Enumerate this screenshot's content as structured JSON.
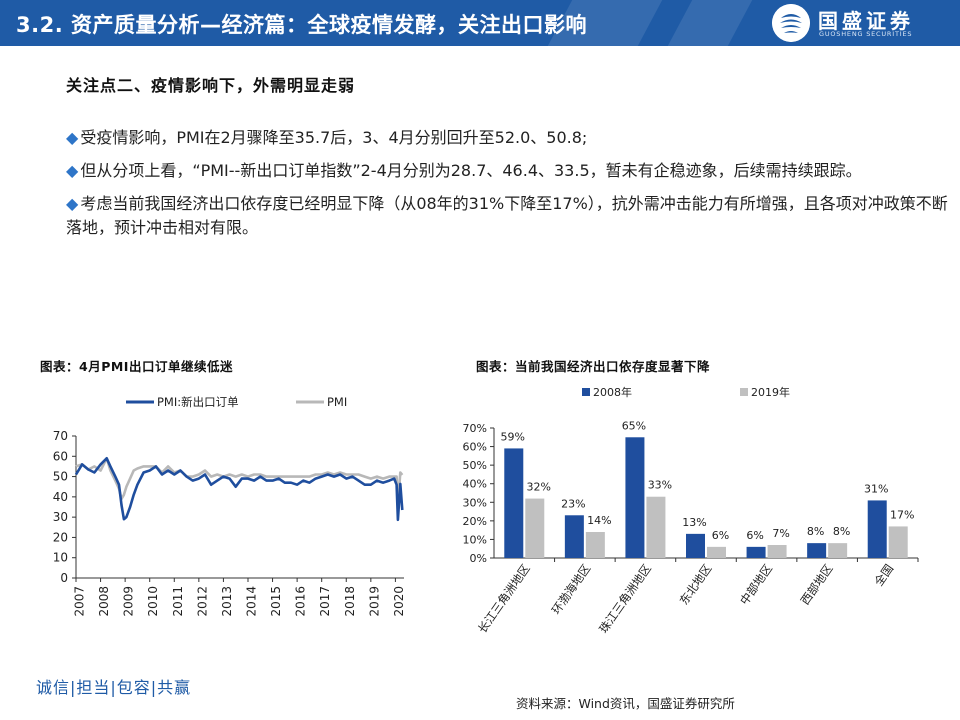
{
  "header": {
    "section_no": "3.2.",
    "title": "资产质量分析—经济篇：全球疫情发酵，关注出口影响",
    "brand_name": "国盛证券",
    "brand_sub": "GUOSHENG SECURITIES",
    "accent_color": "#1f5ba6"
  },
  "subheading": "关注点二、疫情影响下，外需明显走弱",
  "bullets": [
    "受疫情影响，PMI在2月骤降至35.7后，3、4月分别回升至52.0、50.8;",
    "但从分项上看，“PMI--新出口订单指数”2-4月分别为28.7、46.4、33.5，暂未有企稳迹象，后续需持续跟踪。",
    "考虑当前我国经济出口依存度已经明显下降（从08年的31%下降至17%），抗外需冲击能力有所增强，且各项对冲政策不断落地，预计冲击相对有限。"
  ],
  "bullet_icon": "diamond-bullet-icon",
  "footer": {
    "slogan": "诚信|担当|包容|共赢",
    "source": "资料来源：Wind资讯，国盛证券研究所"
  },
  "chart_data": [
    {
      "type": "line",
      "title": "图表：4月PMI出口订单继续低迷",
      "xlabel": "",
      "ylabel": "",
      "ylim": [
        0,
        70
      ],
      "yticks": [
        0,
        10,
        20,
        30,
        40,
        50,
        60,
        70
      ],
      "xticks": [
        "2007",
        "2008",
        "2009",
        "2010",
        "2011",
        "2012",
        "2013",
        "2014",
        "2015",
        "2016",
        "2017",
        "2018",
        "2019",
        "2020"
      ],
      "legend_position": "top",
      "series": [
        {
          "name": "PMI:新出口订单",
          "color": "#1f4e9e",
          "values": [
            [
              2007.0,
              51.0
            ],
            [
              2007.25,
              56.0
            ],
            [
              2007.5,
              53.5
            ],
            [
              2007.75,
              52.0
            ],
            [
              2008.0,
              56.0
            ],
            [
              2008.25,
              59.0
            ],
            [
              2008.4,
              55.0
            ],
            [
              2008.6,
              50.0
            ],
            [
              2008.75,
              46.0
            ],
            [
              2008.85,
              36.0
            ],
            [
              2008.95,
              29.0
            ],
            [
              2009.05,
              30.0
            ],
            [
              2009.2,
              35.0
            ],
            [
              2009.35,
              41.0
            ],
            [
              2009.5,
              46.0
            ],
            [
              2009.75,
              52.0
            ],
            [
              2010.0,
              53.0
            ],
            [
              2010.25,
              55.0
            ],
            [
              2010.5,
              51.0
            ],
            [
              2010.75,
              53.0
            ],
            [
              2011.0,
              51.0
            ],
            [
              2011.25,
              53.0
            ],
            [
              2011.5,
              50.0
            ],
            [
              2011.75,
              48.0
            ],
            [
              2012.0,
              49.0
            ],
            [
              2012.25,
              51.0
            ],
            [
              2012.5,
              46.0
            ],
            [
              2012.75,
              48.0
            ],
            [
              2013.0,
              50.0
            ],
            [
              2013.25,
              49.0
            ],
            [
              2013.5,
              45.0
            ],
            [
              2013.75,
              49.0
            ],
            [
              2014.0,
              49.0
            ],
            [
              2014.25,
              48.0
            ],
            [
              2014.5,
              50.0
            ],
            [
              2014.75,
              48.0
            ],
            [
              2015.0,
              48.0
            ],
            [
              2015.25,
              49.0
            ],
            [
              2015.5,
              47.0
            ],
            [
              2015.75,
              47.0
            ],
            [
              2016.0,
              46.0
            ],
            [
              2016.25,
              48.0
            ],
            [
              2016.5,
              47.0
            ],
            [
              2016.75,
              49.0
            ],
            [
              2017.0,
              50.0
            ],
            [
              2017.25,
              51.0
            ],
            [
              2017.5,
              50.0
            ],
            [
              2017.75,
              51.0
            ],
            [
              2018.0,
              49.0
            ],
            [
              2018.25,
              50.0
            ],
            [
              2018.5,
              48.0
            ],
            [
              2018.75,
              46.0
            ],
            [
              2019.0,
              46.0
            ],
            [
              2019.25,
              48.0
            ],
            [
              2019.5,
              47.0
            ],
            [
              2019.75,
              48.0
            ],
            [
              2019.95,
              49.0
            ],
            [
              2020.05,
              46.0
            ],
            [
              2020.1,
              28.7
            ],
            [
              2020.2,
              46.4
            ],
            [
              2020.28,
              33.5
            ]
          ]
        },
        {
          "name": "PMI",
          "color": "#b8b8b8",
          "values": [
            [
              2007.0,
              55.0
            ],
            [
              2007.25,
              56.0
            ],
            [
              2007.5,
              53.5
            ],
            [
              2007.75,
              55.0
            ],
            [
              2008.0,
              53.0
            ],
            [
              2008.25,
              59.0
            ],
            [
              2008.4,
              53.0
            ],
            [
              2008.6,
              48.0
            ],
            [
              2008.75,
              44.0
            ],
            [
              2008.85,
              39.0
            ],
            [
              2008.95,
              41.0
            ],
            [
              2009.05,
              45.0
            ],
            [
              2009.2,
              49.0
            ],
            [
              2009.35,
              53.0
            ],
            [
              2009.5,
              54.0
            ],
            [
              2009.75,
              55.0
            ],
            [
              2010.0,
              55.0
            ],
            [
              2010.25,
              55.0
            ],
            [
              2010.5,
              52.0
            ],
            [
              2010.75,
              55.0
            ],
            [
              2011.0,
              52.0
            ],
            [
              2011.25,
              53.0
            ],
            [
              2011.5,
              50.0
            ],
            [
              2011.75,
              50.0
            ],
            [
              2012.0,
              51.0
            ],
            [
              2012.25,
              53.0
            ],
            [
              2012.5,
              50.0
            ],
            [
              2012.75,
              51.0
            ],
            [
              2013.0,
              50.0
            ],
            [
              2013.25,
              51.0
            ],
            [
              2013.5,
              50.0
            ],
            [
              2013.75,
              51.0
            ],
            [
              2014.0,
              50.0
            ],
            [
              2014.25,
              51.0
            ],
            [
              2014.5,
              51.0
            ],
            [
              2014.75,
              50.0
            ],
            [
              2015.0,
              50.0
            ],
            [
              2015.25,
              50.0
            ],
            [
              2015.5,
              50.0
            ],
            [
              2015.75,
              50.0
            ],
            [
              2016.0,
              50.0
            ],
            [
              2016.25,
              50.0
            ],
            [
              2016.5,
              50.0
            ],
            [
              2016.75,
              51.0
            ],
            [
              2017.0,
              51.0
            ],
            [
              2017.25,
              52.0
            ],
            [
              2017.5,
              51.0
            ],
            [
              2017.75,
              52.0
            ],
            [
              2018.0,
              51.0
            ],
            [
              2018.25,
              51.0
            ],
            [
              2018.5,
              51.0
            ],
            [
              2018.75,
              50.0
            ],
            [
              2019.0,
              49.0
            ],
            [
              2019.25,
              50.0
            ],
            [
              2019.5,
              49.0
            ],
            [
              2019.75,
              50.0
            ],
            [
              2019.95,
              50.0
            ],
            [
              2020.05,
              50.0
            ],
            [
              2020.1,
              35.7
            ],
            [
              2020.2,
              52.0
            ],
            [
              2020.28,
              50.8
            ]
          ]
        }
      ]
    },
    {
      "type": "bar",
      "title": "图表：当前我国经济出口依存度显著下降",
      "xlabel": "",
      "ylabel": "",
      "ylim": [
        0,
        70
      ],
      "yticks": [
        "0%",
        "10%",
        "20%",
        "30%",
        "40%",
        "50%",
        "60%",
        "70%"
      ],
      "legend_position": "top",
      "categories": [
        "长江三角洲地区",
        "环渤海地区",
        "珠江三角洲地区",
        "东北地区",
        "中部地区",
        "西部地区",
        "全国"
      ],
      "series": [
        {
          "name": "2008年",
          "color": "#1f4e9e",
          "values": [
            59,
            23,
            65,
            13,
            6,
            8,
            31
          ],
          "labels": [
            "59%",
            "23%",
            "65%",
            "13%",
            "6%",
            "8%",
            "31%"
          ]
        },
        {
          "name": "2019年",
          "color": "#c0c0c0",
          "values": [
            32,
            14,
            33,
            6,
            7,
            8,
            17
          ],
          "labels": [
            "32%",
            "14%",
            "33%",
            "6%",
            "7%",
            "8%",
            "17%"
          ]
        }
      ]
    }
  ]
}
